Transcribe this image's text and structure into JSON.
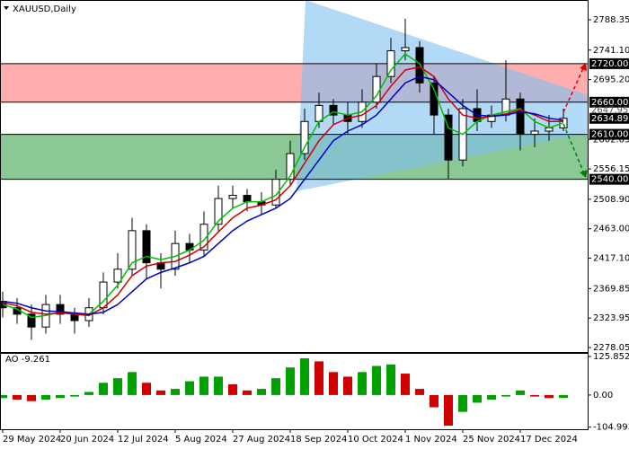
{
  "chart_data": {
    "type": "candlestick",
    "title": "XAUUSD,Daily",
    "xlim": [
      -0.1875,
      40.75
    ],
    "xticks": [
      {
        "value": 0,
        "label": "29 May 2024"
      },
      {
        "value": 4,
        "label": "20 Jun 2024"
      },
      {
        "value": 8,
        "label": "12 Jul 2024"
      },
      {
        "value": 12,
        "label": "5 Aug 2024"
      },
      {
        "value": 16,
        "label": "27 Aug 2024"
      },
      {
        "value": 20,
        "label": "18 Sep 2024"
      },
      {
        "value": 24,
        "label": "10 Oct 2024"
      },
      {
        "value": 28,
        "label": "1 Nov 2024"
      },
      {
        "value": 32,
        "label": "25 Nov 2024"
      },
      {
        "value": 36,
        "label": "17 Dec 2024"
      }
    ],
    "ylim": [
      2269.7,
      2819.1
    ],
    "yticks": [
      2788.35,
      {
        "value": 2741.1,
        "label": "2741.10"
      },
      {
        "value": 2695.2,
        "label": "2695.20"
      },
      2602.05,
      2556.15,
      {
        "value": 2508.9,
        "label": "2508.90"
      },
      {
        "value": 2463,
        "label": "2463.00"
      },
      {
        "value": 2417.1,
        "label": "2417.10"
      },
      2369.85,
      2323.95,
      2278.05
    ],
    "bull_color": "#ffffff",
    "bear_color": "#000000",
    "open": [
      2350,
      2340,
      2330,
      2310,
      2345,
      2330,
      2320,
      2340,
      2380,
      2400,
      2460,
      2410,
      2400,
      2440,
      2430,
      2470,
      2510,
      2515,
      2505,
      2500,
      2540,
      2580,
      2630,
      2655,
      2640,
      2630,
      2660,
      2700,
      2740,
      2745,
      2690,
      2640,
      2570,
      2650,
      2630,
      2640,
      2665,
      2610,
      2615,
      2620
    ],
    "high": [
      2365,
      2355,
      2345,
      2360,
      2360,
      2340,
      2355,
      2395,
      2425,
      2480,
      2470,
      2425,
      2460,
      2455,
      2490,
      2530,
      2530,
      2525,
      2520,
      2555,
      2600,
      2650,
      2675,
      2665,
      2660,
      2680,
      2720,
      2760,
      2790,
      2755,
      2700,
      2650,
      2665,
      2680,
      2655,
      2725,
      2675,
      2635,
      2640,
      2650
    ],
    "low": [
      2325,
      2315,
      2290,
      2300,
      2315,
      2300,
      2310,
      2330,
      2370,
      2390,
      2385,
      2370,
      2390,
      2410,
      2420,
      2460,
      2495,
      2490,
      2485,
      2495,
      2530,
      2570,
      2620,
      2625,
      2610,
      2620,
      2650,
      2690,
      2725,
      2675,
      2610,
      2540,
      2560,
      2615,
      2620,
      2630,
      2585,
      2590,
      2600,
      2615
    ],
    "close": [
      2340,
      2330,
      2310,
      2345,
      2330,
      2320,
      2340,
      2380,
      2400,
      2460,
      2410,
      2400,
      2440,
      2430,
      2470,
      2510,
      2515,
      2505,
      2500,
      2540,
      2580,
      2630,
      2655,
      2640,
      2630,
      2660,
      2700,
      2740,
      2745,
      2690,
      2640,
      2570,
      2650,
      2630,
      2640,
      2665,
      2610,
      2615,
      2620,
      2634.89
    ],
    "series": [
      {
        "color": "#00c000",
        "values": [
          2345,
          2338,
          2325,
          2328,
          2333,
          2330,
          2330,
          2350,
          2375,
          2410,
          2420,
          2415,
          2420,
          2430,
          2445,
          2475,
          2495,
          2505,
          2505,
          2515,
          2545,
          2590,
          2630,
          2645,
          2640,
          2645,
          2670,
          2710,
          2735,
          2720,
          2680,
          2620,
          2610,
          2630,
          2640,
          2645,
          2650,
          2630,
          2620,
          2628
        ]
      },
      {
        "color": "#d00000",
        "values": [
          2348,
          2343,
          2333,
          2330,
          2332,
          2330,
          2328,
          2340,
          2360,
          2390,
          2405,
          2410,
          2412,
          2422,
          2435,
          2458,
          2480,
          2495,
          2500,
          2508,
          2530,
          2565,
          2600,
          2625,
          2635,
          2640,
          2655,
          2685,
          2710,
          2715,
          2700,
          2665,
          2640,
          2635,
          2638,
          2642,
          2648,
          2640,
          2630,
          2630
        ]
      },
      {
        "color": "#0000c0",
        "values": [
          2350,
          2347,
          2340,
          2335,
          2334,
          2332,
          2330,
          2333,
          2345,
          2365,
          2385,
          2395,
          2402,
          2410,
          2420,
          2440,
          2460,
          2475,
          2485,
          2495,
          2510,
          2540,
          2570,
          2600,
          2615,
          2625,
          2640,
          2665,
          2690,
          2700,
          2695,
          2675,
          2655,
          2640,
          2638,
          2640,
          2645,
          2642,
          2635,
          2632
        ]
      }
    ],
    "levels": [
      {
        "value": 2720,
        "label": "2720.00"
      },
      {
        "value": 2660,
        "label": "2660.00"
      },
      {
        "value": 2610,
        "label": "2610.00"
      },
      {
        "value": 2540,
        "label": "2540.00"
      }
    ],
    "zones": [
      {
        "from": 2660,
        "to": 2720,
        "color": "#ff6b6b"
      },
      {
        "from": 2540,
        "to": 2610,
        "color": "#2e9a3e"
      }
    ],
    "ask_price": 2647.95,
    "ao": {
      "label": "AO -9.261",
      "ylim": [
        -111.8,
        137.6
      ],
      "yticks": [
        125.852,
        {
          "value": 0,
          "label": "0.00"
        },
        -104.993
      ],
      "up_color": "#00a000",
      "down_color": "#d00000",
      "values": [
        -10,
        -15,
        -20,
        -15,
        -10,
        -5,
        10,
        40,
        55,
        75,
        40,
        15,
        20,
        45,
        60,
        60,
        35,
        15,
        20,
        55,
        90,
        120,
        110,
        75,
        60,
        75,
        95,
        100,
        70,
        20,
        -40,
        -100,
        -55,
        -25,
        -15,
        -5,
        15,
        -5,
        -10,
        -9.261
      ]
    }
  }
}
